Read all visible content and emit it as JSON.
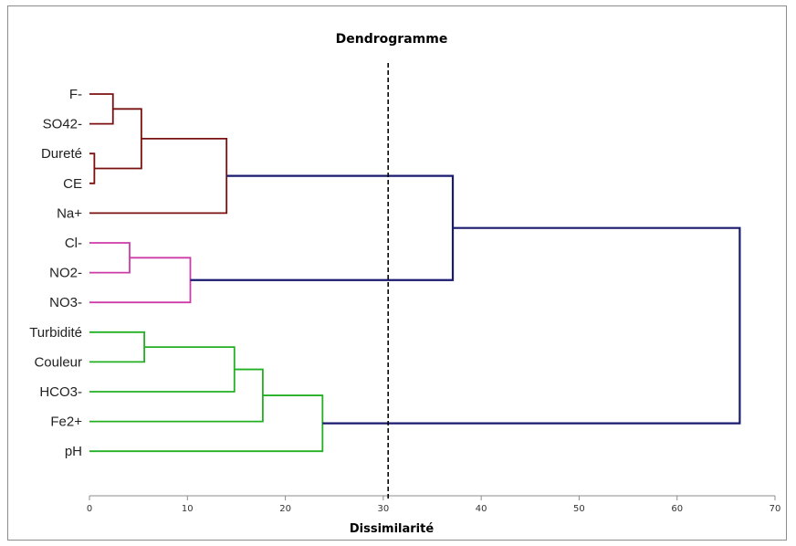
{
  "chart_data": {
    "type": "dendrogram",
    "title": "Dendrogramme",
    "xlabel": "Dissimilarité",
    "xlim": [
      0,
      70
    ],
    "xticks": [
      0,
      10,
      20,
      30,
      40,
      50,
      60,
      70
    ],
    "cut_threshold": 30.5,
    "grid": false,
    "leaves": [
      "F-",
      "SO42-",
      "Dureté",
      "CE",
      "Na+",
      "Cl-",
      "NO2-",
      "NO3-",
      "Turbidité",
      "Couleur",
      "HCO3-",
      "Fe2+",
      "pH"
    ],
    "colors": {
      "cluster1": "#7b1010",
      "cluster2": "#cc3ba8",
      "cluster3": "#22b022",
      "root": "#1a1a6e",
      "threshold": "#000000"
    },
    "merges": [
      {
        "id": "m1",
        "a": "F-",
        "b": "SO42-",
        "height": 2.4,
        "color": "cluster1"
      },
      {
        "id": "m2",
        "a": "Dureté",
        "b": "CE",
        "height": 0.5,
        "color": "cluster1"
      },
      {
        "id": "m3",
        "a": "m1",
        "b": "m2",
        "height": 5.3,
        "color": "cluster1"
      },
      {
        "id": "m4",
        "a": "m3",
        "b": "Na+",
        "height": 14.0,
        "color": "cluster1"
      },
      {
        "id": "m5",
        "a": "Cl-",
        "b": "NO2-",
        "height": 4.1,
        "color": "cluster2"
      },
      {
        "id": "m6",
        "a": "m5",
        "b": "NO3-",
        "height": 10.3,
        "color": "cluster2"
      },
      {
        "id": "m7",
        "a": "m4",
        "b": "m6",
        "height": 37.1,
        "color": "root"
      },
      {
        "id": "m8",
        "a": "Turbidité",
        "b": "Couleur",
        "height": 5.6,
        "color": "cluster3"
      },
      {
        "id": "m9",
        "a": "m8",
        "b": "HCO3-",
        "height": 14.8,
        "color": "cluster3"
      },
      {
        "id": "m10",
        "a": "m9",
        "b": "Fe2+",
        "height": 17.7,
        "color": "cluster3"
      },
      {
        "id": "m11",
        "a": "m10",
        "b": "pH",
        "height": 23.8,
        "color": "cluster3"
      },
      {
        "id": "m12",
        "a": "m7",
        "b": "m11",
        "height": 66.4,
        "color": "root"
      }
    ]
  }
}
